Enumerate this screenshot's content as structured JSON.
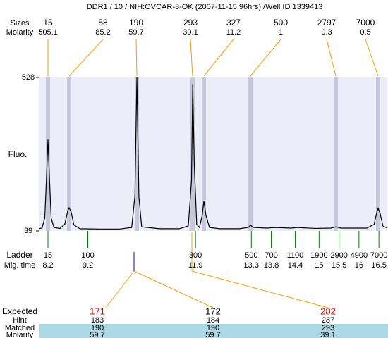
{
  "header": {
    "title": "DDR1 / 10 / NIH:OVCAR-3-OK (2007-11-15 96hrs) /Well ID 1339413"
  },
  "peaks": {
    "size_label": "Sizes",
    "molarity_label": "Molarity",
    "sizes": [
      15,
      58,
      190,
      293,
      327,
      500,
      2797,
      7000
    ],
    "molarity": [
      505.1,
      85.2,
      59.7,
      39.1,
      11.2,
      1,
      0.3,
      0.5
    ]
  },
  "chart_data": {
    "type": "line",
    "ylabel": "Fluo.",
    "ylim": [
      39,
      528
    ],
    "yticks": [
      39,
      528
    ],
    "xlim": [
      7.97,
      16.71
    ],
    "x": [
      7.97,
      8.05,
      8.12,
      8.16,
      8.2,
      8.24,
      8.28,
      8.35,
      8.5,
      8.62,
      8.7,
      8.73,
      8.78,
      8.85,
      9.0,
      9.5,
      10.0,
      10.3,
      10.38,
      10.43,
      10.48,
      10.55,
      11.0,
      11.5,
      11.72,
      11.8,
      11.83,
      11.87,
      11.93,
      12.0,
      12.07,
      12.11,
      12.16,
      12.25,
      12.5,
      13.0,
      13.22,
      13.28,
      13.35,
      13.7,
      13.9,
      14.3,
      14.45,
      14.9,
      15.3,
      15.42,
      15.55,
      16.2,
      16.38,
      16.45,
      16.48,
      16.53,
      16.6,
      16.71
    ],
    "series": [
      {
        "color": "#000000",
        "values": [
          47,
          48,
          80,
          200,
          330,
          200,
          80,
          50,
          47,
          60,
          105,
          113,
          100,
          58,
          46,
          45,
          45,
          50,
          150,
          528,
          150,
          52,
          46,
          46,
          55,
          200,
          505,
          250,
          60,
          50,
          90,
          135,
          90,
          50,
          46,
          46,
          50,
          57,
          50,
          48,
          50,
          48,
          50,
          47,
          48,
          52,
          48,
          48,
          60,
          100,
          111,
          95,
          55,
          48
        ]
      }
    ]
  },
  "ladder": {
    "label": "Ladder",
    "time_label": "Mig. time",
    "sizes": [
      15,
      100,
      300,
      500,
      700,
      1100,
      1900,
      2900,
      4900,
      7000
    ],
    "times": [
      8.2,
      9.2,
      11.9,
      13.3,
      13.8,
      14.4,
      15,
      15.5,
      16,
      16.5
    ]
  },
  "expected": {
    "label": "Expected",
    "hint_label": "Hint",
    "matched_label": "Matched",
    "molarity_label": "Molarity",
    "expected": [
      171,
      172,
      282
    ],
    "hint": [
      183,
      184,
      287
    ],
    "matched": [
      190,
      190,
      293
    ],
    "molarity": [
      59.7,
      59.7,
      39.1
    ]
  }
}
